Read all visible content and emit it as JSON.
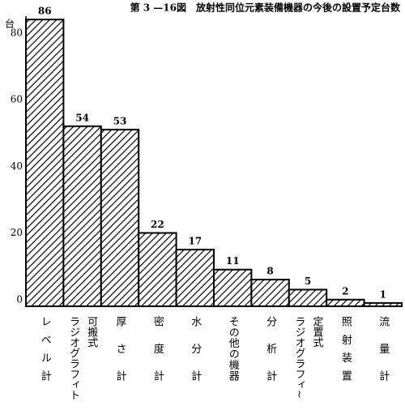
{
  "chart_data": {
    "type": "bar",
    "title": "第 3 —16図　放射性同位元素装備機器の今後の設置予定台数",
    "y_unit": "台",
    "categories": [
      [
        "レベル計"
      ],
      [
        "可搬式",
        "ラジオグラフィト"
      ],
      [
        "厚さ計"
      ],
      [
        "密度計"
      ],
      [
        "水分計"
      ],
      [
        "その他の機器"
      ],
      [
        "分析計"
      ],
      [
        "定置式",
        "ラジオグラフィ~"
      ],
      [
        "照射装置"
      ],
      [
        "流量計"
      ]
    ],
    "values": [
      86,
      54,
      53,
      22,
      17,
      11,
      8,
      5,
      2,
      1
    ],
    "color": "#000000",
    "ylim": [
      0,
      87
    ],
    "yticks": [
      0,
      20,
      40,
      60,
      80
    ],
    "grid": false
  }
}
